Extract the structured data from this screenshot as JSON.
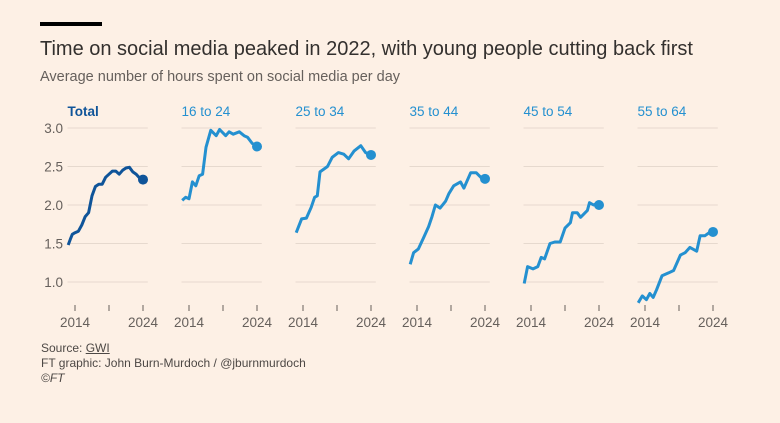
{
  "header": {
    "title": "Time on social media peaked in 2022, with young people cutting back first",
    "subtitle": "Average number of hours spent on social media per day"
  },
  "footer": {
    "source_prefix": "Source: ",
    "source_link": "GWI",
    "credit": "FT graphic: John Burn-Murdoch / @jburnmurdoch",
    "copyright": "©FT"
  },
  "chart_data": {
    "type": "line",
    "layout": "small-multiples",
    "ylim": [
      1.0,
      3.0
    ],
    "yticks": [
      "1.0",
      "1.5",
      "2.0",
      "2.5",
      "3.0"
    ],
    "xticks": [
      "2014",
      "2024"
    ],
    "x_minor_ticks": [
      2014,
      2019,
      2024
    ],
    "grid": true,
    "series": [
      {
        "name": "Total",
        "color": "#0f5499",
        "x": [
          2013,
          2013.3,
          2013.6,
          2014,
          2014.5,
          2015,
          2015.5,
          2016,
          2016.5,
          2017,
          2017.5,
          2018,
          2018.5,
          2019,
          2019.5,
          2020,
          2020.5,
          2021,
          2021.5,
          2022,
          2022.5,
          2023,
          2023.5,
          2024
        ],
        "y": [
          1.48,
          1.55,
          1.62,
          1.64,
          1.66,
          1.74,
          1.85,
          1.9,
          2.12,
          2.24,
          2.27,
          2.27,
          2.36,
          2.4,
          2.44,
          2.44,
          2.4,
          2.45,
          2.48,
          2.49,
          2.43,
          2.4,
          2.35,
          2.33
        ]
      },
      {
        "name": "16 to 24",
        "color": "#2490d0",
        "x": [
          2013,
          2013.5,
          2014,
          2014.5,
          2015,
          2015.5,
          2016,
          2016.5,
          2017.2,
          2018,
          2018.5,
          2019.4,
          2019.9,
          2020.5,
          2021.4,
          2022.1,
          2022.6,
          2023.3,
          2024
        ],
        "y": [
          2.06,
          2.1,
          2.08,
          2.3,
          2.25,
          2.38,
          2.4,
          2.75,
          2.97,
          2.9,
          2.98,
          2.9,
          2.95,
          2.92,
          2.95,
          2.9,
          2.88,
          2.8,
          2.76
        ]
      },
      {
        "name": "25 to 34",
        "color": "#2490d0",
        "x": [
          2013,
          2013.8,
          2014.5,
          2015.2,
          2015.7,
          2016.1,
          2016.5,
          2017.6,
          2018.3,
          2019.2,
          2020,
          2020.7,
          2021.5,
          2022.5,
          2023.2,
          2024
        ],
        "y": [
          1.64,
          1.82,
          1.83,
          1.97,
          2.1,
          2.12,
          2.43,
          2.5,
          2.62,
          2.68,
          2.66,
          2.6,
          2.7,
          2.77,
          2.68,
          2.65
        ]
      },
      {
        "name": "35 to 44",
        "color": "#2490d0",
        "x": [
          2013,
          2013.5,
          2014.2,
          2015,
          2015.7,
          2016.2,
          2016.7,
          2017.4,
          2018.2,
          2018.7,
          2019.4,
          2020.4,
          2020.9,
          2021.9,
          2022.7,
          2023.6,
          2024
        ],
        "y": [
          1.23,
          1.38,
          1.43,
          1.58,
          1.72,
          1.85,
          2.0,
          1.96,
          2.05,
          2.15,
          2.25,
          2.3,
          2.22,
          2.42,
          2.42,
          2.34,
          2.34
        ]
      },
      {
        "name": "45 to 54",
        "color": "#2490d0",
        "x": [
          2013,
          2013.5,
          2014.3,
          2015,
          2015.5,
          2016,
          2016.8,
          2017.5,
          2018.3,
          2019,
          2019.8,
          2020.1,
          2020.8,
          2021.3,
          2022.3,
          2022.6,
          2023.2,
          2023.6,
          2024
        ],
        "y": [
          0.98,
          1.2,
          1.17,
          1.2,
          1.32,
          1.3,
          1.5,
          1.52,
          1.52,
          1.7,
          1.77,
          1.9,
          1.9,
          1.84,
          1.93,
          2.03,
          2.0,
          2.02,
          2.0
        ]
      },
      {
        "name": "55 to 64",
        "color": "#2490d0",
        "x": [
          2013,
          2013.6,
          2014.2,
          2014.7,
          2015.2,
          2015.7,
          2016.5,
          2017.5,
          2018.2,
          2019.2,
          2019.9,
          2020.6,
          2021.6,
          2022.1,
          2022.8,
          2023.6,
          2024
        ],
        "y": [
          0.73,
          0.82,
          0.77,
          0.85,
          0.8,
          0.9,
          1.08,
          1.12,
          1.15,
          1.35,
          1.38,
          1.45,
          1.4,
          1.6,
          1.6,
          1.65,
          1.65
        ]
      }
    ]
  }
}
